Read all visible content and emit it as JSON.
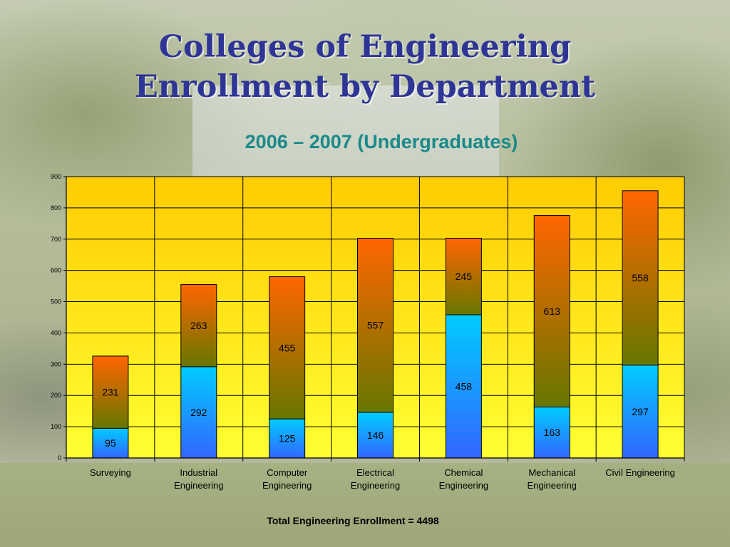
{
  "slide": {
    "title_line1": "Colleges of Engineering",
    "title_line2": "Enrollment by Department",
    "subtitle": "2006 – 2007 (Undergraduates)",
    "footer": "Total Engineering Enrollment = 4498"
  },
  "colors": {
    "title": "#2e3596",
    "subtitle": "#1a8a8a",
    "plot_top": "#ffcc00",
    "plot_bottom": "#ffff33",
    "lower_segment_top": "#00ccff",
    "lower_segment_bottom": "#3366ff",
    "upper_segment_top": "#ff6600",
    "upper_segment_bottom": "#667700"
  },
  "chart_data": {
    "type": "bar",
    "stacked": true,
    "categories": [
      [
        "Surveying"
      ],
      [
        "Industrial",
        "Engineering"
      ],
      [
        "Computer",
        "Engineering"
      ],
      [
        "Electrical",
        "Engineering"
      ],
      [
        "Chemical",
        "Engineering"
      ],
      [
        "Mechanical",
        "Engineering"
      ],
      [
        "Civil Engineering"
      ]
    ],
    "series": [
      {
        "values": [
          95,
          292,
          125,
          146,
          458,
          163,
          297
        ]
      },
      {
        "values": [
          231,
          263,
          455,
          557,
          245,
          613,
          558
        ]
      }
    ],
    "ylim": [
      0,
      900
    ],
    "yticks": [
      0,
      100,
      200,
      300,
      400,
      500,
      600,
      700,
      800,
      900
    ],
    "grid": true,
    "legend": "none"
  }
}
